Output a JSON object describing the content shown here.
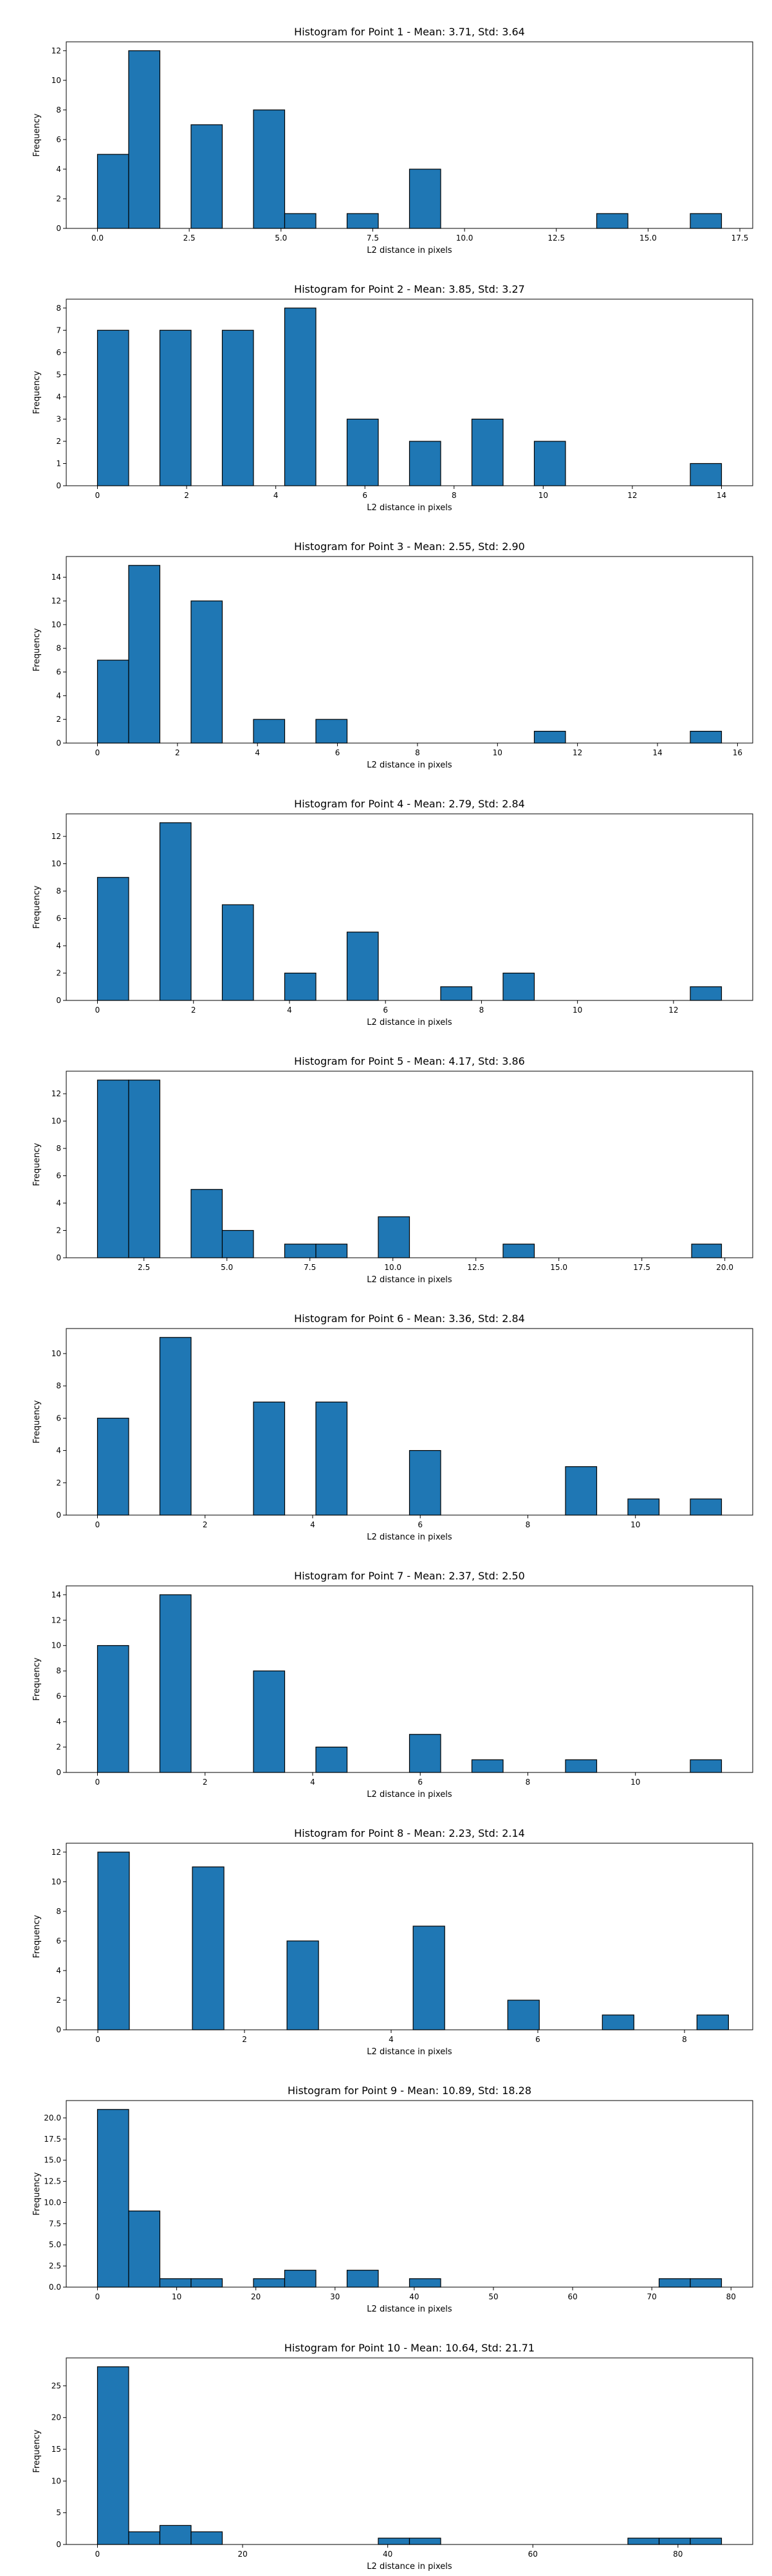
{
  "colors": {
    "bar_fill": "#1f77b4",
    "bar_edge": "#000000",
    "axes": "#000000"
  },
  "chart_data": [
    {
      "type": "bar",
      "title": "Histogram for Point 1 - Mean: 3.71, Std: 3.64",
      "xlabel": "L2 distance in pixels",
      "ylabel": "Frequency",
      "xlim": [
        -0.85,
        17.85
      ],
      "ylim": [
        0,
        12.6
      ],
      "xticks": [
        0.0,
        2.5,
        5.0,
        7.5,
        10.0,
        12.5,
        15.0,
        17.5
      ],
      "xtick_labels": [
        "0.0",
        "2.5",
        "5.0",
        "7.5",
        "10.0",
        "12.5",
        "15.0",
        "17.5"
      ],
      "yticks": [
        0,
        2,
        4,
        6,
        8,
        10,
        12
      ],
      "ytick_labels": [
        "0",
        "2",
        "4",
        "6",
        "8",
        "10",
        "12"
      ],
      "bins": [
        {
          "x0": 0.0,
          "x1": 0.85,
          "count": 5
        },
        {
          "x0": 0.85,
          "x1": 1.7,
          "count": 12
        },
        {
          "x0": 2.55,
          "x1": 3.4,
          "count": 7
        },
        {
          "x0": 4.25,
          "x1": 5.1,
          "count": 8
        },
        {
          "x0": 5.1,
          "x1": 5.95,
          "count": 1
        },
        {
          "x0": 6.8,
          "x1": 7.65,
          "count": 1
        },
        {
          "x0": 8.5,
          "x1": 9.35,
          "count": 4
        },
        {
          "x0": 13.6,
          "x1": 14.45,
          "count": 1
        },
        {
          "x0": 16.15,
          "x1": 17.0,
          "count": 1
        }
      ]
    },
    {
      "type": "bar",
      "title": "Histogram for Point 2 - Mean: 3.85, Std: 3.27",
      "xlabel": "L2 distance in pixels",
      "ylabel": "Frequency",
      "xlim": [
        -0.7,
        14.7
      ],
      "ylim": [
        0,
        8.4
      ],
      "xticks": [
        0,
        2,
        4,
        6,
        8,
        10,
        12,
        14
      ],
      "xtick_labels": [
        "0",
        "2",
        "4",
        "6",
        "8",
        "10",
        "12",
        "14"
      ],
      "yticks": [
        0,
        1,
        2,
        3,
        4,
        5,
        6,
        7,
        8
      ],
      "ytick_labels": [
        "0",
        "1",
        "2",
        "3",
        "4",
        "5",
        "6",
        "7",
        "8"
      ],
      "bins": [
        {
          "x0": 0.0,
          "x1": 0.7,
          "count": 7
        },
        {
          "x0": 1.4,
          "x1": 2.1,
          "count": 7
        },
        {
          "x0": 2.8,
          "x1": 3.5,
          "count": 7
        },
        {
          "x0": 4.2,
          "x1": 4.9,
          "count": 8
        },
        {
          "x0": 5.6,
          "x1": 6.3,
          "count": 3
        },
        {
          "x0": 7.0,
          "x1": 7.7,
          "count": 2
        },
        {
          "x0": 8.4,
          "x1": 9.1,
          "count": 3
        },
        {
          "x0": 9.8,
          "x1": 10.5,
          "count": 2
        },
        {
          "x0": 13.3,
          "x1": 14.0,
          "count": 1
        }
      ]
    },
    {
      "type": "bar",
      "title": "Histogram for Point 3 - Mean: 2.55, Std: 2.90",
      "xlabel": "L2 distance in pixels",
      "ylabel": "Frequency",
      "xlim": [
        -0.78,
        16.38
      ],
      "ylim": [
        0,
        15.75
      ],
      "xticks": [
        0,
        2,
        4,
        6,
        8,
        10,
        12,
        14,
        16
      ],
      "xtick_labels": [
        "0",
        "2",
        "4",
        "6",
        "8",
        "10",
        "12",
        "14",
        "16"
      ],
      "yticks": [
        0,
        2,
        4,
        6,
        8,
        10,
        12,
        14
      ],
      "ytick_labels": [
        "0",
        "2",
        "4",
        "6",
        "8",
        "10",
        "12",
        "14"
      ],
      "bins": [
        {
          "x0": 0.0,
          "x1": 0.78,
          "count": 7
        },
        {
          "x0": 0.78,
          "x1": 1.56,
          "count": 15
        },
        {
          "x0": 2.34,
          "x1": 3.12,
          "count": 12
        },
        {
          "x0": 3.9,
          "x1": 4.68,
          "count": 2
        },
        {
          "x0": 5.46,
          "x1": 6.24,
          "count": 2
        },
        {
          "x0": 10.92,
          "x1": 11.7,
          "count": 1
        },
        {
          "x0": 14.82,
          "x1": 15.6,
          "count": 1
        }
      ]
    },
    {
      "type": "bar",
      "title": "Histogram for Point 4 - Mean: 2.79, Std: 2.84",
      "xlabel": "L2 distance in pixels",
      "ylabel": "Frequency",
      "xlim": [
        -0.65,
        13.65
      ],
      "ylim": [
        0,
        13.65
      ],
      "xticks": [
        0,
        2,
        4,
        6,
        8,
        10,
        12
      ],
      "xtick_labels": [
        "0",
        "2",
        "4",
        "6",
        "8",
        "10",
        "12"
      ],
      "yticks": [
        0,
        2,
        4,
        6,
        8,
        10,
        12
      ],
      "ytick_labels": [
        "0",
        "2",
        "4",
        "6",
        "8",
        "10",
        "12"
      ],
      "bins": [
        {
          "x0": 0.0,
          "x1": 0.65,
          "count": 9
        },
        {
          "x0": 1.3,
          "x1": 1.95,
          "count": 13
        },
        {
          "x0": 2.6,
          "x1": 3.25,
          "count": 7
        },
        {
          "x0": 3.9,
          "x1": 4.55,
          "count": 2
        },
        {
          "x0": 5.2,
          "x1": 5.85,
          "count": 5
        },
        {
          "x0": 7.15,
          "x1": 7.8,
          "count": 1
        },
        {
          "x0": 8.45,
          "x1": 9.1,
          "count": 2
        },
        {
          "x0": 12.35,
          "x1": 13.0,
          "count": 1
        }
      ]
    },
    {
      "type": "bar",
      "title": "Histogram for Point 5 - Mean: 4.17, Std: 3.86",
      "xlabel": "L2 distance in pixels",
      "ylabel": "Frequency",
      "xlim": [
        0.16,
        20.84
      ],
      "ylim": [
        0,
        13.65
      ],
      "xticks": [
        2.5,
        5.0,
        7.5,
        10.0,
        12.5,
        15.0,
        17.5,
        20.0
      ],
      "xtick_labels": [
        "2.5",
        "5.0",
        "7.5",
        "10.0",
        "12.5",
        "15.0",
        "17.5",
        "20.0"
      ],
      "yticks": [
        0,
        2,
        4,
        6,
        8,
        10,
        12
      ],
      "ytick_labels": [
        "0",
        "2",
        "4",
        "6",
        "8",
        "10",
        "12"
      ],
      "bins": [
        {
          "x0": 1.1,
          "x1": 2.04,
          "count": 13
        },
        {
          "x0": 2.04,
          "x1": 2.98,
          "count": 13
        },
        {
          "x0": 3.92,
          "x1": 4.86,
          "count": 5
        },
        {
          "x0": 4.86,
          "x1": 5.8,
          "count": 2
        },
        {
          "x0": 6.74,
          "x1": 7.68,
          "count": 1
        },
        {
          "x0": 7.68,
          "x1": 8.62,
          "count": 1
        },
        {
          "x0": 9.56,
          "x1": 10.5,
          "count": 3
        },
        {
          "x0": 13.32,
          "x1": 14.26,
          "count": 1
        },
        {
          "x0": 19.0,
          "x1": 19.9,
          "count": 1
        }
      ]
    },
    {
      "type": "bar",
      "title": "Histogram for Point 6 - Mean: 3.36, Std: 2.84",
      "xlabel": "L2 distance in pixels",
      "ylabel": "Frequency",
      "xlim": [
        -0.58,
        12.18
      ],
      "ylim": [
        0,
        11.55
      ],
      "xticks": [
        0,
        2,
        4,
        6,
        8,
        10
      ],
      "xtick_labels": [
        "0",
        "2",
        "4",
        "6",
        "8",
        "10"
      ],
      "yticks": [
        0,
        2,
        4,
        6,
        8,
        10
      ],
      "ytick_labels": [
        "0",
        "2",
        "4",
        "6",
        "8",
        "10"
      ],
      "bins": [
        {
          "x0": 0.0,
          "x1": 0.58,
          "count": 6
        },
        {
          "x0": 1.16,
          "x1": 1.74,
          "count": 11
        },
        {
          "x0": 2.9,
          "x1": 3.48,
          "count": 7
        },
        {
          "x0": 4.06,
          "x1": 4.64,
          "count": 7
        },
        {
          "x0": 5.8,
          "x1": 6.38,
          "count": 4
        },
        {
          "x0": 8.7,
          "x1": 9.28,
          "count": 3
        },
        {
          "x0": 9.86,
          "x1": 10.44,
          "count": 1
        },
        {
          "x0": 11.02,
          "x1": 11.6,
          "count": 1
        }
      ]
    },
    {
      "type": "bar",
      "title": "Histogram for Point 7 - Mean: 2.37, Std: 2.50",
      "xlabel": "L2 distance in pixels",
      "ylabel": "Frequency",
      "xlim": [
        -0.58,
        12.18
      ],
      "ylim": [
        0,
        14.7
      ],
      "xticks": [
        0,
        2,
        4,
        6,
        8,
        10
      ],
      "xtick_labels": [
        "0",
        "2",
        "4",
        "6",
        "8",
        "10"
      ],
      "yticks": [
        0,
        2,
        4,
        6,
        8,
        10,
        12,
        14
      ],
      "ytick_labels": [
        "0",
        "2",
        "4",
        "6",
        "8",
        "10",
        "12",
        "14"
      ],
      "bins": [
        {
          "x0": 0.0,
          "x1": 0.58,
          "count": 10
        },
        {
          "x0": 1.16,
          "x1": 1.74,
          "count": 14
        },
        {
          "x0": 2.9,
          "x1": 3.48,
          "count": 8
        },
        {
          "x0": 4.06,
          "x1": 4.64,
          "count": 2
        },
        {
          "x0": 5.8,
          "x1": 6.38,
          "count": 3
        },
        {
          "x0": 6.96,
          "x1": 7.54,
          "count": 1
        },
        {
          "x0": 8.7,
          "x1": 9.28,
          "count": 1
        },
        {
          "x0": 11.02,
          "x1": 11.6,
          "count": 1
        }
      ]
    },
    {
      "type": "bar",
      "title": "Histogram for Point 8 - Mean: 2.23, Std: 2.14",
      "xlabel": "L2 distance in pixels",
      "ylabel": "Frequency",
      "xlim": [
        -0.43,
        8.93
      ],
      "ylim": [
        0,
        12.6
      ],
      "xticks": [
        0,
        2,
        4,
        6,
        8
      ],
      "xtick_labels": [
        "0",
        "2",
        "4",
        "6",
        "8"
      ],
      "yticks": [
        0,
        2,
        4,
        6,
        8,
        10,
        12
      ],
      "ytick_labels": [
        "0",
        "2",
        "4",
        "6",
        "8",
        "10",
        "12"
      ],
      "bins": [
        {
          "x0": 0.0,
          "x1": 0.43,
          "count": 12
        },
        {
          "x0": 1.29,
          "x1": 1.72,
          "count": 11
        },
        {
          "x0": 2.58,
          "x1": 3.01,
          "count": 6
        },
        {
          "x0": 4.3,
          "x1": 4.73,
          "count": 7
        },
        {
          "x0": 5.59,
          "x1": 6.02,
          "count": 2
        },
        {
          "x0": 6.88,
          "x1": 7.31,
          "count": 1
        },
        {
          "x0": 8.17,
          "x1": 8.6,
          "count": 1
        }
      ]
    },
    {
      "type": "bar",
      "title": "Histogram for Point 9 - Mean: 10.89, Std: 18.28",
      "xlabel": "L2 distance in pixels",
      "ylabel": "Frequency",
      "xlim": [
        -3.94,
        82.74
      ],
      "ylim": [
        0,
        22.05
      ],
      "xticks": [
        0,
        10,
        20,
        30,
        40,
        50,
        60,
        70,
        80
      ],
      "xtick_labels": [
        "0",
        "10",
        "20",
        "30",
        "40",
        "50",
        "60",
        "70",
        "80"
      ],
      "yticks": [
        0,
        2.5,
        5.0,
        7.5,
        10.0,
        12.5,
        15.0,
        17.5,
        20.0
      ],
      "ytick_labels": [
        "0.0",
        "2.5",
        "5.0",
        "7.5",
        "10.0",
        "12.5",
        "15.0",
        "17.5",
        "20.0"
      ],
      "bins": [
        {
          "x0": 0.0,
          "x1": 3.94,
          "count": 21
        },
        {
          "x0": 3.94,
          "x1": 7.88,
          "count": 9
        },
        {
          "x0": 7.88,
          "x1": 11.82,
          "count": 1
        },
        {
          "x0": 11.82,
          "x1": 15.76,
          "count": 1
        },
        {
          "x0": 19.7,
          "x1": 23.64,
          "count": 1
        },
        {
          "x0": 23.64,
          "x1": 27.58,
          "count": 2
        },
        {
          "x0": 31.52,
          "x1": 35.46,
          "count": 2
        },
        {
          "x0": 39.4,
          "x1": 43.34,
          "count": 1
        },
        {
          "x0": 70.92,
          "x1": 74.86,
          "count": 1
        },
        {
          "x0": 74.86,
          "x1": 78.8,
          "count": 1
        }
      ]
    },
    {
      "type": "bar",
      "title": "Histogram for Point 10 - Mean: 10.64, Std: 21.71",
      "xlabel": "L2 distance in pixels",
      "ylabel": "Frequency",
      "xlim": [
        -4.3,
        90.3
      ],
      "ylim": [
        0,
        29.4
      ],
      "xticks": [
        0,
        20,
        40,
        60,
        80
      ],
      "xtick_labels": [
        "0",
        "20",
        "40",
        "60",
        "80"
      ],
      "yticks": [
        0,
        5,
        10,
        15,
        20,
        25
      ],
      "ytick_labels": [
        "0",
        "5",
        "10",
        "15",
        "20",
        "25"
      ],
      "bins": [
        {
          "x0": 0.0,
          "x1": 4.3,
          "count": 28
        },
        {
          "x0": 4.3,
          "x1": 8.6,
          "count": 2
        },
        {
          "x0": 8.6,
          "x1": 12.9,
          "count": 3
        },
        {
          "x0": 12.9,
          "x1": 17.2,
          "count": 2
        },
        {
          "x0": 38.7,
          "x1": 43.0,
          "count": 1
        },
        {
          "x0": 43.0,
          "x1": 47.3,
          "count": 1
        },
        {
          "x0": 73.1,
          "x1": 77.4,
          "count": 1
        },
        {
          "x0": 77.4,
          "x1": 81.7,
          "count": 1
        },
        {
          "x0": 81.7,
          "x1": 86.0,
          "count": 1
        }
      ]
    }
  ]
}
